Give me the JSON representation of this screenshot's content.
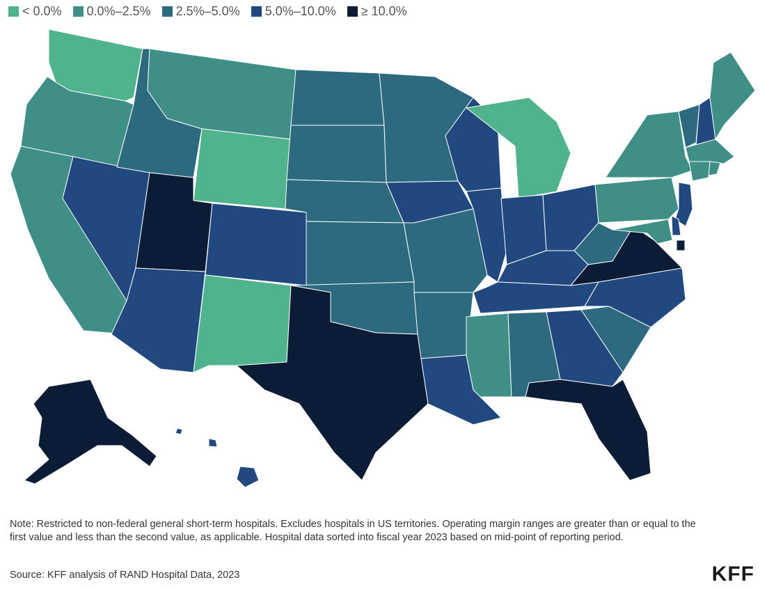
{
  "legend": [
    {
      "label": "< 0.0%",
      "color": "#4fb38d"
    },
    {
      "label": "0.0%–2.5%",
      "color": "#3f8f86"
    },
    {
      "label": "2.5%–5.0%",
      "color": "#2e6a7f"
    },
    {
      "label": "5.0%–10.0%",
      "color": "#21497f"
    },
    {
      "label": "≥ 10.0%",
      "color": "#0c1c37"
    }
  ],
  "states": {
    "WA": 0,
    "OR": 1,
    "CA": 1,
    "NV": 3,
    "ID": 2,
    "MT": 1,
    "WY": 0,
    "UT": 4,
    "AZ": 3,
    "CO": 3,
    "NM": 0,
    "ND": 2,
    "SD": 2,
    "NE": 2,
    "KS": 2,
    "OK": 2,
    "TX": 4,
    "MN": 2,
    "IA": 3,
    "MO": 2,
    "AR": 2,
    "LA": 3,
    "WI": 3,
    "IL": 3,
    "MI": 0,
    "IN": 3,
    "OH": 3,
    "KY": 3,
    "TN": 3,
    "MS": 1,
    "AL": 2,
    "GA": 3,
    "FL": 4,
    "SC": 2,
    "NC": 3,
    "VA": 4,
    "WV": 2,
    "PA": 1,
    "NY": 1,
    "VT": 2,
    "NH": 3,
    "ME": 1,
    "MA": 1,
    "CT": 1,
    "RI": 1,
    "NJ": 3,
    "DE": 3,
    "MD": 1,
    "DC": 4,
    "AK": 4,
    "HI": 3
  },
  "note": "Note: Restricted to non-federal general short-term hospitals. Excludes hospitals in US territories. Operating margin ranges are greater than or equal to the first value and less than the second value, as applicable. Hospital data sorted into fiscal year 2023 based on mid-point of reporting period.",
  "source": "Source: KFF analysis of RAND Hospital Data, 2023",
  "logo": "KFF"
}
